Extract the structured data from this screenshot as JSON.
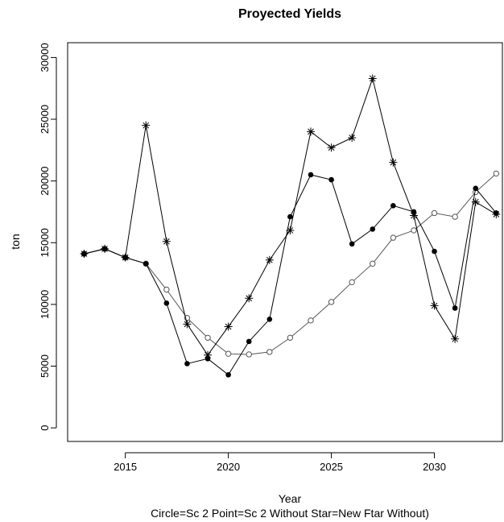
{
  "chart_data": {
    "type": "line",
    "title": "Proyected Yields",
    "x_label": "Year",
    "y_label": "ton",
    "caption": "Circle=Sc 2    Point=Sc 2 Without     Star=New Ftar Without)",
    "x": [
      2013,
      2014,
      2015,
      2016,
      2017,
      2018,
      2019,
      2020,
      2021,
      2022,
      2023,
      2024,
      2025,
      2026,
      2027,
      2028,
      2029,
      2030,
      2031,
      2032,
      2033
    ],
    "series": [
      {
        "name": "Circle=Sc 2",
        "marker": "circle",
        "color": "#555555",
        "values": [
          14100,
          14500,
          13800,
          13300,
          11200,
          8900,
          7300,
          6000,
          5950,
          6150,
          7300,
          8700,
          10200,
          11800,
          13300,
          15400,
          16000,
          17400,
          17100,
          19100,
          20600
        ]
      },
      {
        "name": "Point=Sc 2 Without",
        "marker": "point",
        "color": "#000000",
        "values": [
          14100,
          14500,
          13800,
          13300,
          10100,
          5200,
          5600,
          4300,
          7000,
          8800,
          17100,
          20500,
          20100,
          14900,
          16100,
          18000,
          17500,
          14300,
          9700,
          19400,
          17400
        ]
      },
      {
        "name": "Star=New Ftar Without)",
        "marker": "star",
        "color": "#000000",
        "values": [
          14100,
          14500,
          13800,
          24500,
          15100,
          8400,
          5900,
          8200,
          10500,
          13600,
          16000,
          24000,
          22700,
          23500,
          28300,
          21500,
          17200,
          9900,
          7200,
          18300,
          17300
        ]
      }
    ],
    "xlim": [
      2012.2,
      2033.3
    ],
    "ylim": [
      -1100,
      31200
    ],
    "xticks": [
      2015,
      2020,
      2025,
      2030
    ],
    "yticks": [
      0,
      5000,
      10000,
      15000,
      20000,
      25000,
      30000
    ]
  }
}
